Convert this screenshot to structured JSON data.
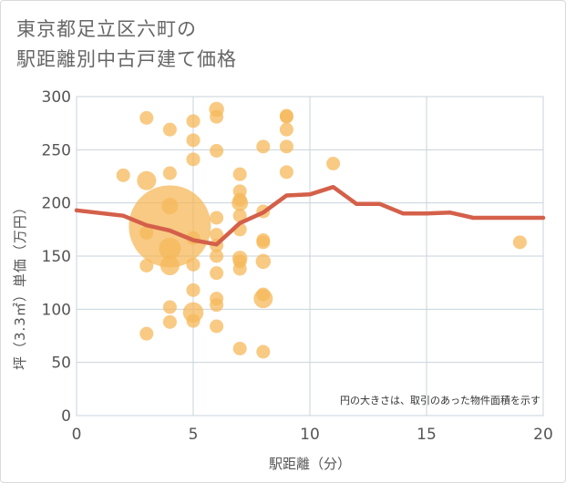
{
  "title_line1": "東京都足立区六町の",
  "title_line2": "駅距離別中古戸建て価格",
  "chart_data": {
    "type": "scatter",
    "title": "東京都足立区六町の駅距離別中古戸建て価格",
    "xlabel": "駅距離（分）",
    "ylabel": "坪（3.3㎡）単価（万円）",
    "xlim": [
      0,
      20
    ],
    "ylim": [
      0,
      300
    ],
    "xticks": [
      0,
      5,
      10,
      15,
      20
    ],
    "yticks": [
      0,
      50,
      100,
      150,
      200,
      250,
      300
    ],
    "grid": true,
    "annotation": "円の大きさは、取引のあった物件面積を示す",
    "colors": {
      "bubble": "#f5b85a",
      "line": "#d4604a",
      "grid": "#c8d3db",
      "axis_text": "#555555"
    },
    "scatter_points": [
      {
        "x": 2,
        "y": 226,
        "s": 1
      },
      {
        "x": 3,
        "y": 280,
        "s": 1
      },
      {
        "x": 3,
        "y": 221,
        "s": 1.4
      },
      {
        "x": 3,
        "y": 172,
        "s": 1
      },
      {
        "x": 3,
        "y": 141,
        "s": 1
      },
      {
        "x": 3,
        "y": 77,
        "s": 1
      },
      {
        "x": 4,
        "y": 269,
        "s": 1
      },
      {
        "x": 4,
        "y": 228,
        "s": 1
      },
      {
        "x": 4,
        "y": 197,
        "s": 1.2
      },
      {
        "x": 4,
        "y": 178,
        "s": 6
      },
      {
        "x": 4,
        "y": 157,
        "s": 1.6
      },
      {
        "x": 4,
        "y": 141,
        "s": 1.4
      },
      {
        "x": 4,
        "y": 102,
        "s": 1
      },
      {
        "x": 4,
        "y": 88,
        "s": 1
      },
      {
        "x": 5,
        "y": 277,
        "s": 1
      },
      {
        "x": 5,
        "y": 259,
        "s": 1
      },
      {
        "x": 5,
        "y": 241,
        "s": 1
      },
      {
        "x": 5,
        "y": 167,
        "s": 1
      },
      {
        "x": 5,
        "y": 142,
        "s": 1
      },
      {
        "x": 5,
        "y": 118,
        "s": 1
      },
      {
        "x": 5,
        "y": 97,
        "s": 1.5
      },
      {
        "x": 5,
        "y": 89,
        "s": 1
      },
      {
        "x": 6,
        "y": 288,
        "s": 1.1
      },
      {
        "x": 6,
        "y": 281,
        "s": 1
      },
      {
        "x": 6,
        "y": 249,
        "s": 1
      },
      {
        "x": 6,
        "y": 186,
        "s": 1
      },
      {
        "x": 6,
        "y": 170,
        "s": 1
      },
      {
        "x": 6,
        "y": 160,
        "s": 1
      },
      {
        "x": 6,
        "y": 150,
        "s": 1
      },
      {
        "x": 6,
        "y": 134,
        "s": 1
      },
      {
        "x": 6,
        "y": 110,
        "s": 1
      },
      {
        "x": 6,
        "y": 104,
        "s": 1
      },
      {
        "x": 6,
        "y": 84,
        "s": 1
      },
      {
        "x": 7,
        "y": 227,
        "s": 1
      },
      {
        "x": 7,
        "y": 211,
        "s": 1
      },
      {
        "x": 7,
        "y": 203,
        "s": 1
      },
      {
        "x": 7,
        "y": 200,
        "s": 1.2
      },
      {
        "x": 7,
        "y": 188,
        "s": 1
      },
      {
        "x": 7,
        "y": 175,
        "s": 1
      },
      {
        "x": 7,
        "y": 148,
        "s": 1.1
      },
      {
        "x": 7,
        "y": 145,
        "s": 1
      },
      {
        "x": 7,
        "y": 138,
        "s": 1
      },
      {
        "x": 7,
        "y": 63,
        "s": 1
      },
      {
        "x": 8,
        "y": 253,
        "s": 1
      },
      {
        "x": 8,
        "y": 192,
        "s": 1
      },
      {
        "x": 8,
        "y": 165,
        "s": 1
      },
      {
        "x": 8,
        "y": 163,
        "s": 1
      },
      {
        "x": 8,
        "y": 145,
        "s": 1.1
      },
      {
        "x": 8,
        "y": 114,
        "s": 1
      },
      {
        "x": 8,
        "y": 110,
        "s": 1.4
      },
      {
        "x": 8,
        "y": 60,
        "s": 1
      },
      {
        "x": 9,
        "y": 282,
        "s": 1
      },
      {
        "x": 9,
        "y": 281,
        "s": 1
      },
      {
        "x": 9,
        "y": 269,
        "s": 1
      },
      {
        "x": 9,
        "y": 253,
        "s": 1
      },
      {
        "x": 9,
        "y": 229,
        "s": 1
      },
      {
        "x": 11,
        "y": 237,
        "s": 1
      },
      {
        "x": 19,
        "y": 163,
        "s": 1
      }
    ],
    "trend_line": {
      "x": [
        0,
        2,
        3,
        4,
        5,
        6,
        7,
        8,
        9,
        10,
        11,
        12,
        13,
        14,
        15,
        16,
        17,
        18,
        19,
        20
      ],
      "y": [
        193,
        188,
        179,
        174,
        165,
        161,
        181,
        191,
        207,
        208,
        215,
        199,
        199,
        190,
        190,
        191,
        186,
        186,
        186,
        186
      ]
    }
  }
}
